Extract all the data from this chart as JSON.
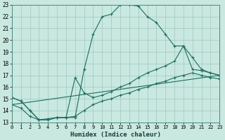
{
  "xlabel": "Humidex (Indice chaleur)",
  "xlim": [
    0,
    23
  ],
  "ylim": [
    13,
    23
  ],
  "xticks": [
    0,
    1,
    2,
    3,
    4,
    5,
    6,
    7,
    8,
    9,
    10,
    11,
    12,
    13,
    14,
    15,
    16,
    17,
    18,
    19,
    20,
    21,
    22,
    23
  ],
  "yticks": [
    13,
    14,
    15,
    16,
    17,
    18,
    19,
    20,
    21,
    22,
    23
  ],
  "bg_color": "#c8e8e0",
  "grid_color": "#a0c8c0",
  "line_color": "#1a7060",
  "line1_x": [
    0,
    1,
    2,
    3,
    4,
    5,
    6,
    7,
    8,
    9,
    10,
    11,
    12,
    13,
    14,
    15,
    16,
    17,
    18,
    19,
    20,
    21,
    22,
    23
  ],
  "line1_y": [
    15.1,
    14.8,
    14.0,
    13.2,
    13.2,
    13.4,
    13.4,
    13.4,
    17.5,
    20.5,
    22.0,
    22.2,
    23.0,
    23.0,
    22.9,
    22.0,
    21.5,
    20.5,
    19.5,
    19.5,
    17.5,
    17.4,
    17.2,
    17.0
  ],
  "line2_x": [
    0,
    1,
    2,
    3,
    4,
    5,
    6,
    7,
    8,
    9,
    10,
    11,
    12,
    13,
    14,
    15,
    16,
    17,
    18,
    19,
    20,
    21,
    22,
    23
  ],
  "line2_y": [
    15.1,
    14.8,
    14.0,
    13.2,
    13.2,
    13.4,
    13.4,
    16.8,
    15.5,
    15.1,
    15.3,
    15.6,
    16.0,
    16.3,
    16.8,
    17.2,
    17.5,
    17.8,
    18.2,
    19.5,
    18.5,
    17.5,
    17.2,
    17.0
  ],
  "line3_x": [
    0,
    1,
    2,
    3,
    4,
    5,
    6,
    7,
    8,
    9,
    10,
    11,
    12,
    13,
    14,
    15,
    16,
    17,
    18,
    19,
    20,
    21,
    22,
    23
  ],
  "line3_y": [
    14.5,
    14.2,
    13.5,
    13.2,
    13.3,
    13.4,
    13.4,
    13.5,
    14.0,
    14.5,
    14.8,
    15.0,
    15.3,
    15.5,
    15.8,
    16.0,
    16.3,
    16.5,
    16.8,
    17.0,
    17.2,
    17.0,
    16.8,
    16.7
  ],
  "line4_x": [
    0,
    23
  ],
  "line4_y": [
    14.5,
    17.0
  ]
}
